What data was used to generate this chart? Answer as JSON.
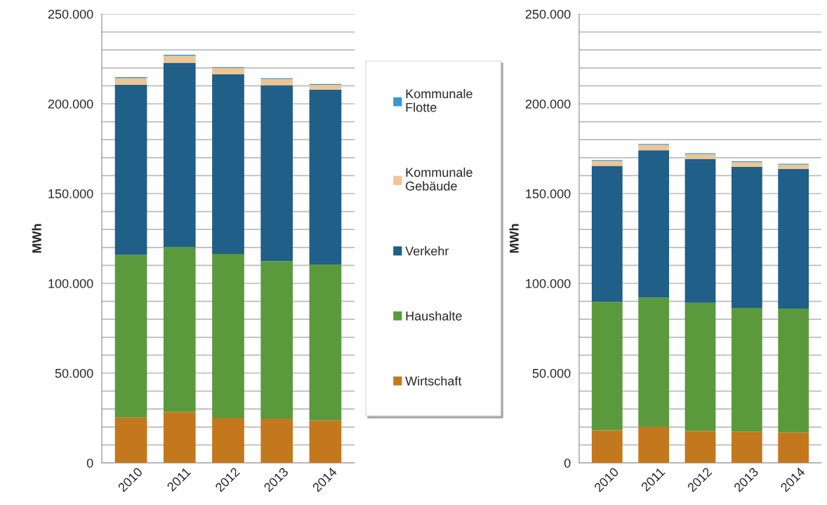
{
  "chart_data": [
    {
      "type": "bar",
      "stacked": true,
      "ylabel": "MWh",
      "categories": [
        "2010",
        "2011",
        "2012",
        "2013",
        "2014"
      ],
      "series": [
        {
          "name": "Wirtschaft",
          "color": "#c3781e",
          "values": [
            25300,
            28300,
            25000,
            24600,
            23700
          ]
        },
        {
          "name": "Haushalte",
          "color": "#5b9a3c",
          "values": [
            90600,
            91900,
            91400,
            87800,
            86800
          ]
        },
        {
          "name": "Verkehr",
          "color": "#1f5f88",
          "values": [
            94600,
            102700,
            100000,
            98000,
            97400
          ]
        },
        {
          "name": "Kommunale\nGebäude",
          "color": "#efc594",
          "values": [
            3800,
            3900,
            3500,
            3400,
            2600
          ]
        },
        {
          "name": "Kommunale\nFlotte",
          "color": "#3a96d0",
          "values": [
            500,
            500,
            500,
            500,
            500
          ]
        }
      ],
      "ylim": [
        0,
        250000
      ],
      "yticks": [
        {
          "value": 0,
          "label": "0"
        },
        {
          "value": 10000,
          "label": null
        },
        {
          "value": 20000,
          "label": null
        },
        {
          "value": 30000,
          "label": null
        },
        {
          "value": 40000,
          "label": null
        },
        {
          "value": 50000,
          "label": "50.000"
        },
        {
          "value": 60000,
          "label": null
        },
        {
          "value": 70000,
          "label": null
        },
        {
          "value": 80000,
          "label": null
        },
        {
          "value": 90000,
          "label": null
        },
        {
          "value": 100000,
          "label": "100.000"
        },
        {
          "value": 110000,
          "label": null
        },
        {
          "value": 120000,
          "label": null
        },
        {
          "value": 130000,
          "label": null
        },
        {
          "value": 140000,
          "label": null
        },
        {
          "value": 150000,
          "label": "150.000"
        },
        {
          "value": 160000,
          "label": null
        },
        {
          "value": 170000,
          "label": null
        },
        {
          "value": 180000,
          "label": null
        },
        {
          "value": 190000,
          "label": null
        },
        {
          "value": 200000,
          "label": "200.000"
        },
        {
          "value": 210000,
          "label": null
        },
        {
          "value": 220000,
          "label": null
        },
        {
          "value": 230000,
          "label": null
        },
        {
          "value": 240000,
          "label": null
        },
        {
          "value": 250000,
          "label": "250.000"
        }
      ],
      "grid": "y",
      "legend": "right"
    },
    {
      "type": "bar",
      "stacked": true,
      "ylabel": "MWh",
      "categories": [
        "2010",
        "2011",
        "2012",
        "2013",
        "2014"
      ],
      "series": [
        {
          "color": "#c3781e",
          "values": [
            18200,
            20000,
            17800,
            17500,
            17100
          ]
        },
        {
          "color": "#5b9a3c",
          "values": [
            71500,
            72100,
            71400,
            68800,
            68800
          ]
        },
        {
          "color": "#1f5f88",
          "values": [
            75700,
            82000,
            80100,
            78500,
            77900
          ]
        },
        {
          "color": "#efc594",
          "values": [
            2800,
            3000,
            2700,
            2700,
            2300
          ]
        },
        {
          "color": "#3a96d0",
          "values": [
            500,
            500,
            500,
            500,
            500
          ]
        }
      ],
      "ylim": [
        0,
        250000
      ],
      "yticks": [
        {
          "value": 0,
          "label": "0"
        },
        {
          "value": 10000,
          "label": null
        },
        {
          "value": 20000,
          "label": null
        },
        {
          "value": 30000,
          "label": null
        },
        {
          "value": 40000,
          "label": null
        },
        {
          "value": 50000,
          "label": "50.000"
        },
        {
          "value": 60000,
          "label": null
        },
        {
          "value": 70000,
          "label": null
        },
        {
          "value": 80000,
          "label": null
        },
        {
          "value": 90000,
          "label": null
        },
        {
          "value": 100000,
          "label": "100.000"
        },
        {
          "value": 110000,
          "label": null
        },
        {
          "value": 120000,
          "label": null
        },
        {
          "value": 130000,
          "label": null
        },
        {
          "value": 140000,
          "label": null
        },
        {
          "value": 150000,
          "label": "150.000"
        },
        {
          "value": 160000,
          "label": null
        },
        {
          "value": 170000,
          "label": null
        },
        {
          "value": 180000,
          "label": null
        },
        {
          "value": 190000,
          "label": null
        },
        {
          "value": 200000,
          "label": "200.000"
        },
        {
          "value": 210000,
          "label": null
        },
        {
          "value": 220000,
          "label": null
        },
        {
          "value": 230000,
          "label": null
        },
        {
          "value": 240000,
          "label": null
        },
        {
          "value": 250000,
          "label": "250.000"
        }
      ],
      "grid": "y"
    }
  ]
}
